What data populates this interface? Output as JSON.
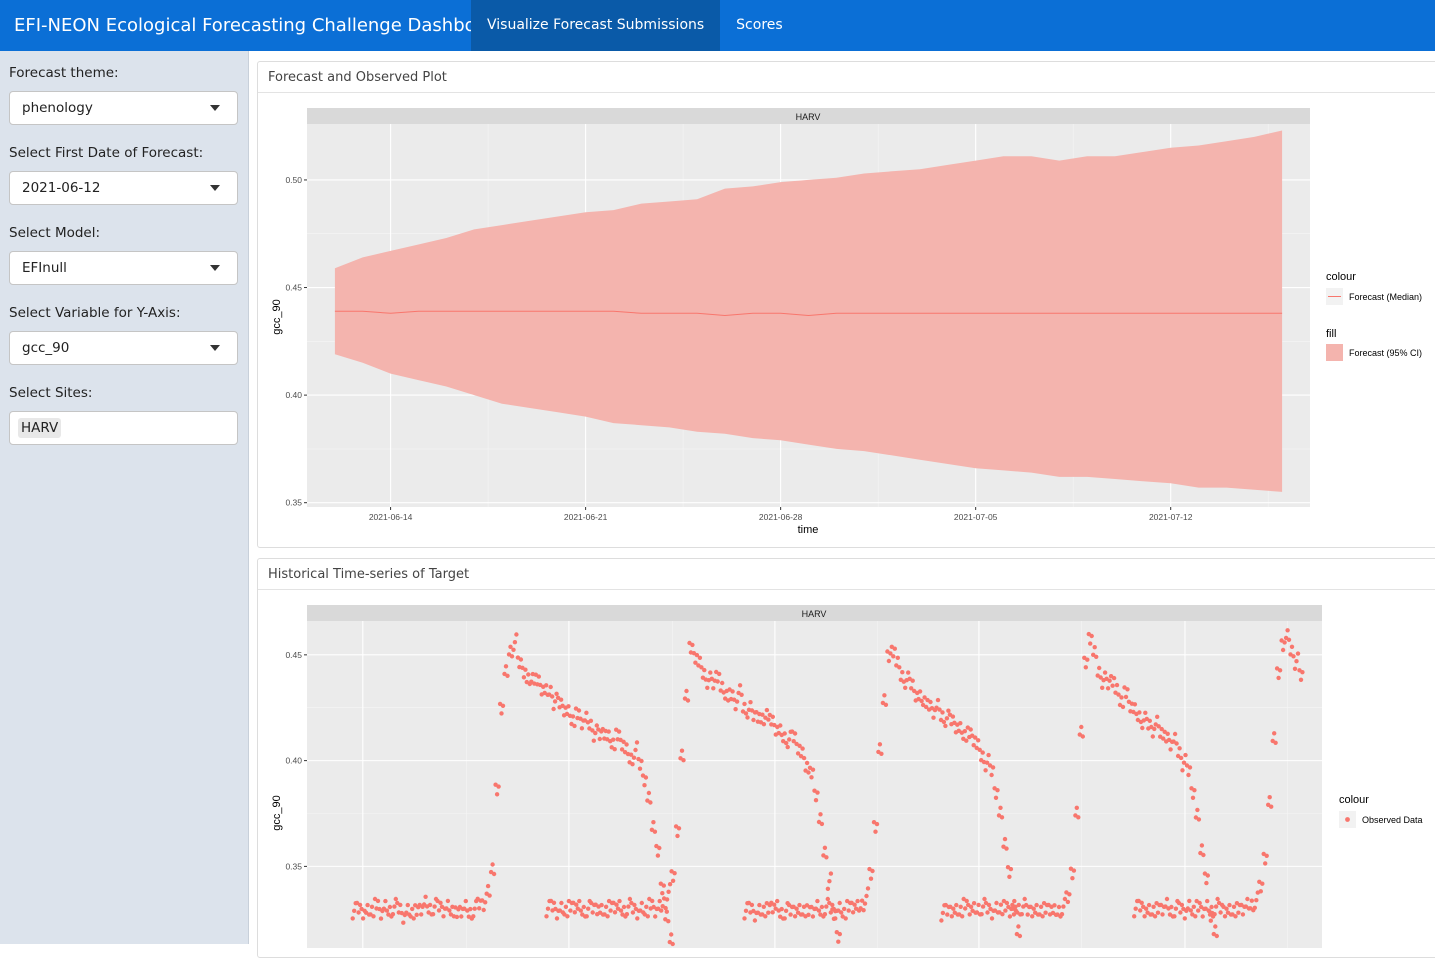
{
  "app_title": "EFI-NEON Ecological Forecasting Challenge Dashboard",
  "nav": {
    "tabs": [
      {
        "label": "Visualize Forecast Submissions",
        "active": true
      },
      {
        "label": "Scores",
        "active": false
      }
    ]
  },
  "colors": {
    "navbar": "#0b6fd6",
    "active_tab": "#0a5aa8",
    "sidebar": "#dce3ec",
    "series": "#f8766d",
    "band": "#f4b4ae",
    "panel": "#ebebeb",
    "strip": "#d9d9d9"
  },
  "sidebar": {
    "theme": {
      "label": "Forecast theme:",
      "value": "phenology"
    },
    "first_date": {
      "label": "Select First Date of Forecast:",
      "value": "2021-06-12"
    },
    "model": {
      "label": "Select Model:",
      "value": "EFInull"
    },
    "variable": {
      "label": "Select Variable for Y-Axis:",
      "value": "gcc_90"
    },
    "sites": {
      "label": "Select Sites:",
      "value": "HARV"
    }
  },
  "forecast_card": {
    "title": "Forecast and Observed Plot"
  },
  "history_card": {
    "title": "Historical Time-series of Target"
  },
  "chart_data": [
    {
      "type": "area",
      "facet": "HARV",
      "xlabel": "time",
      "ylabel": "gcc_90",
      "xlim": [
        "2021-06-11",
        "2021-07-17"
      ],
      "ylim": [
        0.348,
        0.526
      ],
      "x_ticks": [
        "2021-06-14",
        "2021-06-21",
        "2021-06-28",
        "2021-07-05",
        "2021-07-12"
      ],
      "y_ticks": [
        0.35,
        0.4,
        0.45,
        0.5
      ],
      "y_tick_labels": [
        "0.35",
        "0.40",
        "0.45",
        "0.50"
      ],
      "legend": {
        "placement": "right",
        "colour_title": "colour",
        "colour_label": "Forecast (Median)",
        "fill_title": "fill",
        "fill_label": "Forecast (95% CI)"
      },
      "x": [
        "2021-06-12",
        "2021-06-13",
        "2021-06-14",
        "2021-06-15",
        "2021-06-16",
        "2021-06-17",
        "2021-06-18",
        "2021-06-19",
        "2021-06-20",
        "2021-06-21",
        "2021-06-22",
        "2021-06-23",
        "2021-06-24",
        "2021-06-25",
        "2021-06-26",
        "2021-06-27",
        "2021-06-28",
        "2021-06-29",
        "2021-06-30",
        "2021-07-01",
        "2021-07-02",
        "2021-07-03",
        "2021-07-04",
        "2021-07-05",
        "2021-07-06",
        "2021-07-07",
        "2021-07-08",
        "2021-07-09",
        "2021-07-10",
        "2021-07-11",
        "2021-07-12",
        "2021-07-13",
        "2021-07-14",
        "2021-07-15",
        "2021-07-16"
      ],
      "series": [
        {
          "name": "Forecast (Median)",
          "values": [
            0.439,
            0.439,
            0.438,
            0.439,
            0.439,
            0.439,
            0.439,
            0.439,
            0.439,
            0.439,
            0.439,
            0.438,
            0.438,
            0.438,
            0.437,
            0.438,
            0.438,
            0.437,
            0.438,
            0.438,
            0.438,
            0.438,
            0.438,
            0.438,
            0.438,
            0.438,
            0.438,
            0.438,
            0.438,
            0.438,
            0.438,
            0.438,
            0.438,
            0.438,
            0.438
          ]
        },
        {
          "name": "Forecast (95% CI) upper",
          "values": [
            0.459,
            0.464,
            0.467,
            0.47,
            0.473,
            0.477,
            0.479,
            0.481,
            0.483,
            0.485,
            0.486,
            0.489,
            0.49,
            0.491,
            0.496,
            0.497,
            0.499,
            0.5,
            0.501,
            0.503,
            0.504,
            0.505,
            0.507,
            0.509,
            0.511,
            0.511,
            0.509,
            0.511,
            0.511,
            0.513,
            0.515,
            0.516,
            0.518,
            0.52,
            0.523
          ]
        },
        {
          "name": "Forecast (95% CI) lower",
          "values": [
            0.419,
            0.415,
            0.41,
            0.407,
            0.404,
            0.4,
            0.396,
            0.394,
            0.392,
            0.39,
            0.387,
            0.386,
            0.385,
            0.383,
            0.382,
            0.38,
            0.379,
            0.377,
            0.375,
            0.374,
            0.372,
            0.37,
            0.368,
            0.366,
            0.365,
            0.364,
            0.362,
            0.362,
            0.361,
            0.36,
            0.359,
            0.357,
            0.357,
            0.356,
            0.355
          ]
        }
      ]
    },
    {
      "type": "scatter",
      "facet": "HARV",
      "xlabel": "",
      "ylabel": "gcc_90",
      "ylim": [
        0.31,
        0.466
      ],
      "y_ticks": [
        0.35,
        0.4,
        0.45
      ],
      "y_tick_labels": [
        "0.35",
        "0.40",
        "0.45"
      ],
      "legend": {
        "placement": "right",
        "colour_title": "colour",
        "colour_label": "Observed Data"
      },
      "seasons": [
        {
          "x_start": 0.045,
          "values": [
            0.329,
            0.33,
            0.329,
            0.329,
            0.33,
            0.331,
            0.328,
            0.33,
            0.329,
            0.331,
            0.33,
            0.327,
            0.329,
            0.329,
            0.328,
            0.33,
            0.332,
            0.33,
            0.331,
            0.331,
            0.33,
            0.331,
            0.33,
            0.327,
            0.329,
            0.33,
            0.328,
            0.33,
            0.332,
            0.333,
            0.338,
            0.35,
            0.385,
            0.425,
            0.441,
            0.452,
            0.456,
            0.446,
            0.443,
            0.438,
            0.44,
            0.437,
            0.434,
            0.432,
            0.433,
            0.428,
            0.427,
            0.425,
            0.423,
            0.42,
            0.421,
            0.418,
            0.419,
            0.417,
            0.413,
            0.412,
            0.414,
            0.411,
            0.409,
            0.411,
            0.408,
            0.404,
            0.401,
            0.405,
            0.398,
            0.392,
            0.382,
            0.37,
            0.356,
            0.34,
            0.325,
            0.316
          ]
        },
        {
          "x_start": 0.236,
          "values": [
            0.33,
            0.331,
            0.329,
            0.33,
            0.33,
            0.33,
            0.331,
            0.33,
            0.329,
            0.33,
            0.33,
            0.331,
            0.329,
            0.33,
            0.33,
            0.331,
            0.33,
            0.329,
            0.331,
            0.33,
            0.329,
            0.33,
            0.33,
            0.331,
            0.329,
            0.33,
            0.333,
            0.338,
            0.345,
            0.368,
            0.402,
            0.432,
            0.452,
            0.449,
            0.445,
            0.441,
            0.438,
            0.436,
            0.441,
            0.434,
            0.432,
            0.43,
            0.427,
            0.432,
            0.425,
            0.424,
            0.421,
            0.422,
            0.419,
            0.423,
            0.418,
            0.415,
            0.413,
            0.411,
            0.41,
            0.411,
            0.407,
            0.403,
            0.398,
            0.393,
            0.384,
            0.371,
            0.357,
            0.343,
            0.327,
            0.318
          ]
        },
        {
          "x_start": 0.431,
          "values": [
            0.329,
            0.33,
            0.328,
            0.329,
            0.33,
            0.329,
            0.331,
            0.33,
            0.328,
            0.329,
            0.329,
            0.33,
            0.329,
            0.33,
            0.328,
            0.329,
            0.33,
            0.329,
            0.331,
            0.33,
            0.329,
            0.33,
            0.329,
            0.33,
            0.331,
            0.33,
            0.332,
            0.336,
            0.346,
            0.37,
            0.405,
            0.43,
            0.448,
            0.452,
            0.445,
            0.44,
            0.438,
            0.436,
            0.432,
            0.43,
            0.429,
            0.425,
            0.423,
            0.425,
            0.421,
            0.42,
            0.419,
            0.417,
            0.415,
            0.413,
            0.412,
            0.41,
            0.406,
            0.402,
            0.399,
            0.395,
            0.386,
            0.375,
            0.362,
            0.346,
            0.33,
            0.318
          ]
        },
        {
          "x_start": 0.625,
          "values": [
            0.328,
            0.329,
            0.33,
            0.329,
            0.33,
            0.331,
            0.33,
            0.329,
            0.33,
            0.331,
            0.33,
            0.329,
            0.33,
            0.331,
            0.33,
            0.329,
            0.33,
            0.33,
            0.331,
            0.329,
            0.33,
            0.329,
            0.33,
            0.329,
            0.33,
            0.328,
            0.329,
            0.331,
            0.335,
            0.348,
            0.375,
            0.415,
            0.445,
            0.458,
            0.45,
            0.442,
            0.438,
            0.436,
            0.439,
            0.433,
            0.429,
            0.431,
            0.426,
            0.423,
            0.421,
            0.419,
            0.417,
            0.415,
            0.418,
            0.414,
            0.41,
            0.408,
            0.409,
            0.404,
            0.399,
            0.395,
            0.386,
            0.374,
            0.359,
            0.343,
            0.327,
            0.318
          ]
        },
        {
          "x_start": 0.815,
          "values": [
            0.33,
            0.331,
            0.33,
            0.329,
            0.33,
            0.329,
            0.33,
            0.331,
            0.329,
            0.33,
            0.33,
            0.329,
            0.331,
            0.33,
            0.33,
            0.329,
            0.33,
            0.329,
            0.331,
            0.33,
            0.33,
            0.329,
            0.33,
            0.329,
            0.33,
            0.331,
            0.332,
            0.334,
            0.34,
            0.355,
            0.38,
            0.412,
            0.44,
            0.455,
            0.458,
            0.452,
            0.447,
            0.44
          ]
        }
      ]
    }
  ]
}
